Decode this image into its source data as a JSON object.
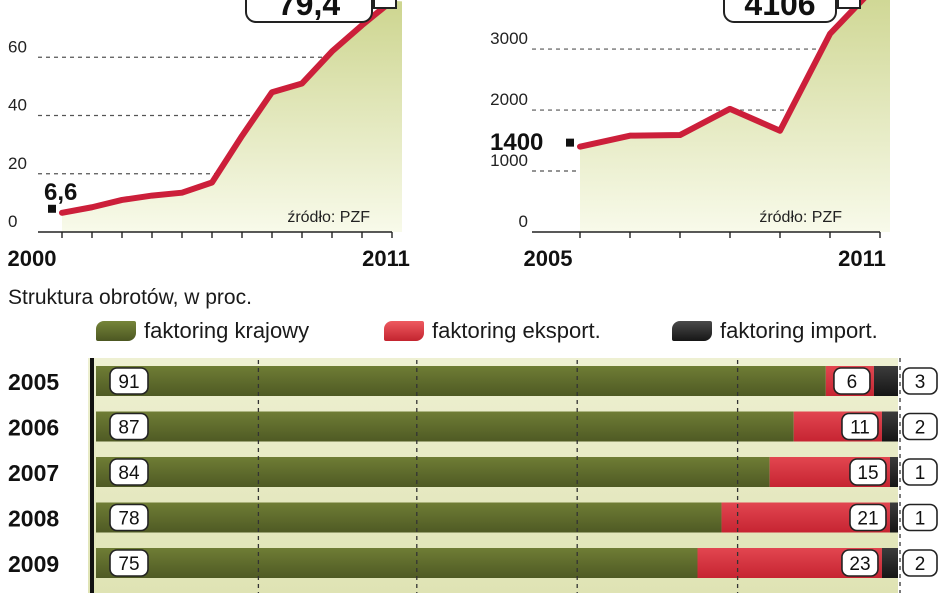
{
  "chart_data": [
    {
      "type": "area",
      "x_start_label": "2000",
      "x_end_label": "2011",
      "x": [
        2000,
        2001,
        2002,
        2003,
        2004,
        2005,
        2006,
        2007,
        2008,
        2009,
        2010,
        2011
      ],
      "values": [
        6.6,
        8.5,
        11,
        12.5,
        13.5,
        17,
        33,
        48,
        51,
        62,
        71,
        79.4
      ],
      "first_label": "6,6",
      "last_label": "79,4",
      "ylim": [
        0,
        80
      ],
      "yticks": [
        "0",
        "20",
        "40",
        "60"
      ],
      "source": "źródło: PZF"
    },
    {
      "type": "area",
      "x_start_label": "2005",
      "x_end_label": "2011",
      "x": [
        2005,
        2006,
        2007,
        2008,
        2009,
        2010,
        2011
      ],
      "values": [
        1400,
        1580,
        1590,
        2020,
        1660,
        3250,
        4106
      ],
      "first_label": "1400",
      "last_label": "4106",
      "ylim": [
        0,
        4100
      ],
      "yticks": [
        "0",
        "1000",
        "2000",
        "3000"
      ],
      "source": "źródło: PZF"
    },
    {
      "type": "bar",
      "stacked": true,
      "orientation": "horizontal",
      "title": "Struktura obrotów, w proc.",
      "categories": [
        "2005",
        "2006",
        "2007",
        "2008",
        "2009"
      ],
      "series": [
        {
          "name": "faktoring krajowy",
          "values": [
            91,
            87,
            84,
            78,
            75
          ]
        },
        {
          "name": "faktoring eksport.",
          "values": [
            6,
            11,
            15,
            21,
            23
          ]
        },
        {
          "name": "faktoring import.",
          "values": [
            3,
            2,
            1,
            1,
            2
          ]
        }
      ],
      "colors": [
        "#5e6b2c",
        "#d8333c",
        "#2b2b2b"
      ]
    }
  ],
  "colors": {
    "line": "#cc1f3a",
    "area_top": "#d3da9c",
    "area_bottom": "#f7f9e8",
    "krajowy": "#5e6b2c",
    "eksport": "#d8333c",
    "import": "#2b2b2b"
  }
}
